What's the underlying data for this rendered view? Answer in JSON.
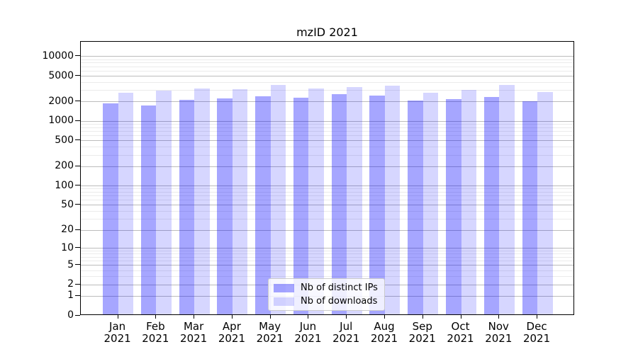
{
  "title": "mzID 2021",
  "chart_data": {
    "type": "bar",
    "title": "mzID 2021",
    "categories": [
      "Jan 2021",
      "Feb 2021",
      "Mar 2021",
      "Apr 2021",
      "May 2021",
      "Jun 2021",
      "Jul 2021",
      "Aug 2021",
      "Sep 2021",
      "Oct 2021",
      "Nov 2021",
      "Dec 2021"
    ],
    "series": [
      {
        "name": "Nb of distinct IPs",
        "color": "rgba(0,0,255,0.35)",
        "values": [
          1790,
          1660,
          2050,
          2170,
          2330,
          2190,
          2480,
          2400,
          1980,
          2080,
          2280,
          1930
        ]
      },
      {
        "name": "Nb of downloads",
        "color": "rgba(0,0,255,0.16)",
        "values": [
          2610,
          2820,
          3080,
          3010,
          3480,
          3100,
          3190,
          3360,
          2610,
          2940,
          3480,
          2700
        ]
      }
    ],
    "y_ticks": [
      0,
      1,
      2,
      5,
      10,
      20,
      50,
      100,
      200,
      500,
      1000,
      2000,
      5000,
      10000
    ],
    "y_scale": "log1p",
    "ylim": [
      0,
      17000
    ],
    "grid": "both",
    "grid_major_color": "#bcbcbc",
    "grid_minor_color": "#ebebeb",
    "legend_position": "lower center"
  }
}
